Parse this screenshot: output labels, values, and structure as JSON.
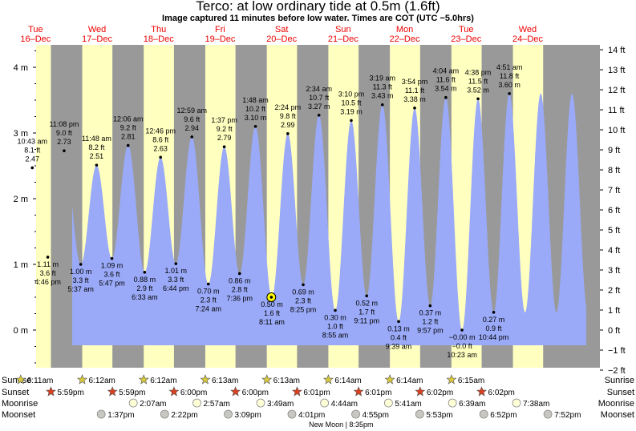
{
  "header": {
    "title": "Terco: at low  ordinary tide at 0.5m (1.6ft)",
    "subtitle": "Image captured 11 minutes before low water. Times are COT (UTC −5.0hrs)"
  },
  "days": [
    {
      "dow": "Tue",
      "date": "16–Dec"
    },
    {
      "dow": "Wed",
      "date": "17–Dec"
    },
    {
      "dow": "Thu",
      "date": "18–Dec"
    },
    {
      "dow": "Fri",
      "date": "19–Dec"
    },
    {
      "dow": "Sat",
      "date": "20–Dec"
    },
    {
      "dow": "Sun",
      "date": "21–Dec"
    },
    {
      "dow": "Mon",
      "date": "22–Dec"
    },
    {
      "dow": "Tue",
      "date": "23–Dec"
    },
    {
      "dow": "Wed",
      "date": "24–Dec"
    }
  ],
  "colors": {
    "night": "#999999",
    "day": "#ffffc0",
    "tide": "#9aaaf8",
    "day_label": "#ee0000"
  },
  "chart_data": {
    "type": "area",
    "title": "Terco: at low  ordinary tide at 0.5m (1.6ft)",
    "time_range_days": [
      0,
      9.0
    ],
    "ylim_m": [
      -0.6,
      4.3
    ],
    "left_axis": {
      "unit": "m",
      "ticks": [
        0,
        1,
        2,
        3,
        4
      ],
      "labels": [
        "0 m",
        "1 m",
        "2 m",
        "3 m",
        "4 m"
      ]
    },
    "right_axis": {
      "unit": "ft",
      "ticks": [
        -2,
        -1,
        0,
        1,
        2,
        3,
        4,
        5,
        6,
        7,
        8,
        9,
        10,
        11,
        12,
        13,
        14
      ],
      "labels": [
        "−2 ft",
        "−1 ft",
        "0 ft",
        "1 ft",
        "2 ft",
        "3 ft",
        "4 ft",
        "5 ft",
        "6 ft",
        "7 ft",
        "8 ft",
        "9 ft",
        "10 ft",
        "11 ft",
        "12 ft",
        "13 ft",
        "14 ft"
      ]
    },
    "series": [
      {
        "values": [
          {
            "type": "high",
            "day": 0,
            "time": "10:43 am",
            "m": 2.47,
            "ft": "8.1 ft",
            "m_label": "2.47"
          },
          {
            "type": "low",
            "day": 0,
            "time": "4:46 pm",
            "m": 1.11,
            "ft": "3.6 ft",
            "m_label": "1.11 m"
          },
          {
            "type": "high",
            "day": 0,
            "time": "11:08 pm",
            "m": 2.73,
            "ft": "9.0 ft",
            "m_label": "2.73"
          },
          {
            "type": "low",
            "day": 1,
            "time": "5:37 am",
            "m": 1.0,
            "ft": "3.3 ft",
            "m_label": "1.00 m"
          },
          {
            "type": "high",
            "day": 1,
            "time": "11:48 am",
            "m": 2.51,
            "ft": "8.2 ft",
            "m_label": "2.51"
          },
          {
            "type": "low",
            "day": 1,
            "time": "5:47 pm",
            "m": 1.09,
            "ft": "3.6 ft",
            "m_label": "1.09 m"
          },
          {
            "type": "high",
            "day": 2,
            "time": "12:06 am",
            "m": 2.81,
            "ft": "9.2 ft",
            "m_label": "2.81"
          },
          {
            "type": "low",
            "day": 2,
            "time": "6:33 am",
            "m": 0.88,
            "ft": "2.9 ft",
            "m_label": "0.88 m"
          },
          {
            "type": "high",
            "day": 2,
            "time": "12:46 pm",
            "m": 2.63,
            "ft": "8.6 ft",
            "m_label": "2.63"
          },
          {
            "type": "low",
            "day": 2,
            "time": "6:44 pm",
            "m": 1.01,
            "ft": "3.3 ft",
            "m_label": "1.01 m"
          },
          {
            "type": "high",
            "day": 3,
            "time": "12:59 am",
            "m": 2.94,
            "ft": "9.6 ft",
            "m_label": "2.94"
          },
          {
            "type": "low",
            "day": 3,
            "time": "7:24 am",
            "m": 0.7,
            "ft": "2.3 ft",
            "m_label": "0.70 m"
          },
          {
            "type": "high",
            "day": 3,
            "time": "1:37 pm",
            "m": 2.79,
            "ft": "9.2 ft",
            "m_label": "2.79"
          },
          {
            "type": "low",
            "day": 3,
            "time": "7:36 pm",
            "m": 0.86,
            "ft": "2.8 ft",
            "m_label": "0.86 m"
          },
          {
            "type": "high",
            "day": 4,
            "time": "1:48 am",
            "m": 3.1,
            "ft": "10.2 ft",
            "m_label": "3.10 m"
          },
          {
            "type": "low",
            "day": 4,
            "time": "8:11 am",
            "m": 0.5,
            "ft": "1.6 ft",
            "m_label": "0.50 m"
          },
          {
            "type": "high",
            "day": 4,
            "time": "2:24 pm",
            "m": 2.99,
            "ft": "9.8 ft",
            "m_label": "2.99"
          },
          {
            "type": "low",
            "day": 4,
            "time": "8:25 pm",
            "m": 0.69,
            "ft": "2.3 ft",
            "m_label": "0.69 m"
          },
          {
            "type": "high",
            "day": 5,
            "time": "2:34 am",
            "m": 3.27,
            "ft": "10.7 ft",
            "m_label": "3.27 m"
          },
          {
            "type": "low",
            "day": 5,
            "time": "8:55 am",
            "m": 0.3,
            "ft": "1.0 ft",
            "m_label": "0.30 m"
          },
          {
            "type": "high",
            "day": 5,
            "time": "3:10 pm",
            "m": 3.19,
            "ft": "10.5 ft",
            "m_label": "3.19 m"
          },
          {
            "type": "low",
            "day": 5,
            "time": "9:11 pm",
            "m": 0.52,
            "ft": "1.7 ft",
            "m_label": "0.52 m"
          },
          {
            "type": "high",
            "day": 6,
            "time": "3:19 am",
            "m": 3.43,
            "ft": "11.3 ft",
            "m_label": "3.43 m"
          },
          {
            "type": "low",
            "day": 6,
            "time": "9:39 am",
            "m": 0.13,
            "ft": "0.4 ft",
            "m_label": "0.13 m"
          },
          {
            "type": "high",
            "day": 6,
            "time": "3:54 pm",
            "m": 3.38,
            "ft": "11.1 ft",
            "m_label": "3.38 m"
          },
          {
            "type": "low",
            "day": 6,
            "time": "9:57 pm",
            "m": 0.37,
            "ft": "1.2 ft",
            "m_label": "0.37 m"
          },
          {
            "type": "high",
            "day": 7,
            "time": "4:04 am",
            "m": 3.54,
            "ft": "11.6 ft",
            "m_label": "3.54 m"
          },
          {
            "type": "low",
            "day": 7,
            "time": "10:23 am",
            "m": 0.0,
            "ft": "−0.0 ft",
            "m_label": "−0.00 m"
          },
          {
            "type": "high",
            "day": 7,
            "time": "4:38 pm",
            "m": 3.52,
            "ft": "11.5 ft",
            "m_label": "3.52 m"
          },
          {
            "type": "low",
            "day": 7,
            "time": "10:44 pm",
            "m": 0.27,
            "ft": "0.9 ft",
            "m_label": "0.27 m"
          },
          {
            "type": "high",
            "day": 8,
            "time": "4:51 am",
            "m": 3.6,
            "ft": "11.8 ft",
            "m_label": "3.60 m"
          }
        ]
      }
    ],
    "current": {
      "day": 4,
      "time": "7:59 am",
      "m": 0.5
    }
  },
  "astro": {
    "labels": {
      "sunrise": "Sunrise",
      "sunset": "Sunset",
      "moonrise": "Moonrise",
      "moonset": "Moonset"
    },
    "sunrise": [
      "6:11am",
      "6:12am",
      "6:12am",
      "6:13am",
      "6:13am",
      "6:14am",
      "6:14am",
      "6:15am"
    ],
    "sunset": [
      "5:59pm",
      "5:59pm",
      "6:00pm",
      "6:00pm",
      "6:01pm",
      "6:01pm",
      "6:02pm",
      "6:02pm"
    ],
    "moonrise": [
      "2:07am",
      "2:57am",
      "3:49am",
      "4:44am",
      "5:41am",
      "6:39am",
      "7:38am"
    ],
    "moonset": [
      "1:37pm",
      "2:22pm",
      "3:09pm",
      "4:01pm",
      "4:55pm",
      "5:53pm",
      "6:52pm",
      "7:52pm"
    ],
    "moon_phase_note": "New Moon | 8:35pm"
  }
}
